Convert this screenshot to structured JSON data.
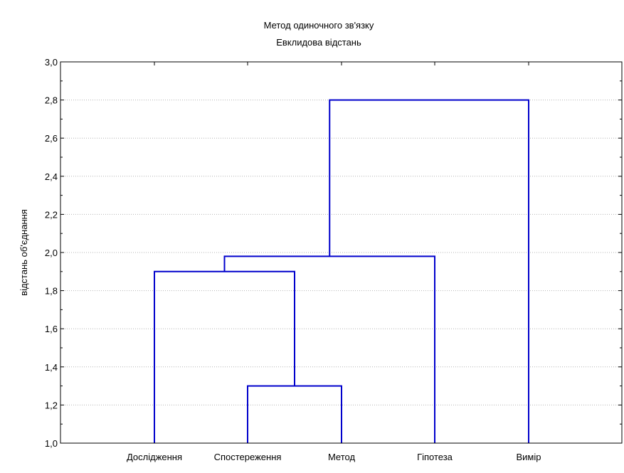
{
  "chart_data": {
    "type": "dendrogram",
    "title": "Метод одиночного зв'язку",
    "subtitle": "Евклидова відстань",
    "xlabel": "",
    "ylabel": "відстань об'єднання",
    "ylim": [
      1.0,
      3.0
    ],
    "yticks": [
      "1,0",
      "1,2",
      "1,4",
      "1,6",
      "1,8",
      "2,0",
      "2,2",
      "2,4",
      "2,6",
      "2,8",
      "3,0"
    ],
    "grid": true,
    "leaves": [
      "Дослідження",
      "Спостереження",
      "Метод",
      "Гіпотеза",
      "Вимір"
    ],
    "merges": [
      {
        "left": "Спостереження",
        "right": "Метод",
        "height": 1.3
      },
      {
        "left": "Дослідження",
        "right": "Спостереження + Метод",
        "height": 1.9
      },
      {
        "left": "Дослідження + Спостереження + Метод",
        "right": "Гіпотеза",
        "height": 1.98
      },
      {
        "left": "Дослідження + Спостереження + Метод + Гіпотеза",
        "right": "Вимір",
        "height": 2.8
      }
    ],
    "line_color": "#0000cc",
    "grid_color": "#b4b4b4"
  }
}
